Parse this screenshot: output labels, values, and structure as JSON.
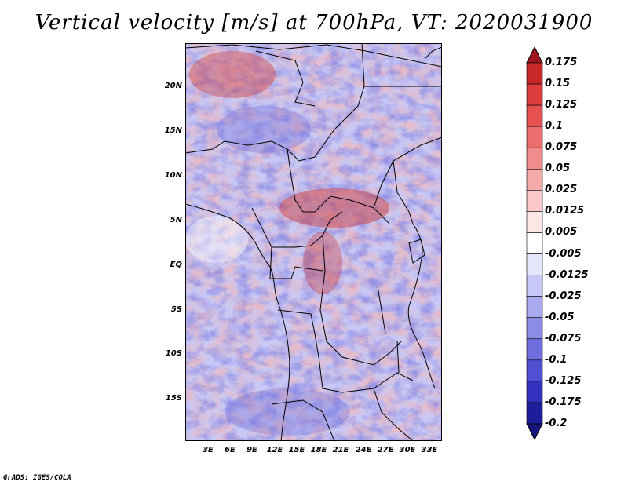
{
  "title": "Vertical velocity [m/s] at 700hPa, VT: 2020031900",
  "credit": "GrADS: IGES/COLA",
  "lat_labels": [
    "20N",
    "15N",
    "10N",
    "5N",
    "EQ",
    "5S",
    "10S",
    "15S"
  ],
  "lon_labels": [
    "3E",
    "6E",
    "9E",
    "12E",
    "15E",
    "18E",
    "21E",
    "24E",
    "27E",
    "30E",
    "33E"
  ],
  "colorbar": {
    "levels": [
      "0.175",
      "0.15",
      "0.125",
      "0.1",
      "0.075",
      "0.05",
      "0.025",
      "0.0125",
      "0.005",
      "-0.005",
      "-0.0125",
      "-0.025",
      "-0.05",
      "-0.075",
      "-0.1",
      "-0.125",
      "-0.175",
      "-0.2"
    ],
    "colors": [
      "#a0141e",
      "#c82828",
      "#dc3c3c",
      "#e65050",
      "#ee6e6e",
      "#f08c8c",
      "#f6aaaa",
      "#fac8c8",
      "#fde6e6",
      "#ffffff",
      "#e6e6fa",
      "#c8c8f6",
      "#aaaaf0",
      "#8c8ce6",
      "#6e6ede",
      "#5050d2",
      "#3232be",
      "#1e1e9a",
      "#14147a"
    ]
  },
  "colors": {
    "coastline": "#000000",
    "background": "#ffffff"
  }
}
